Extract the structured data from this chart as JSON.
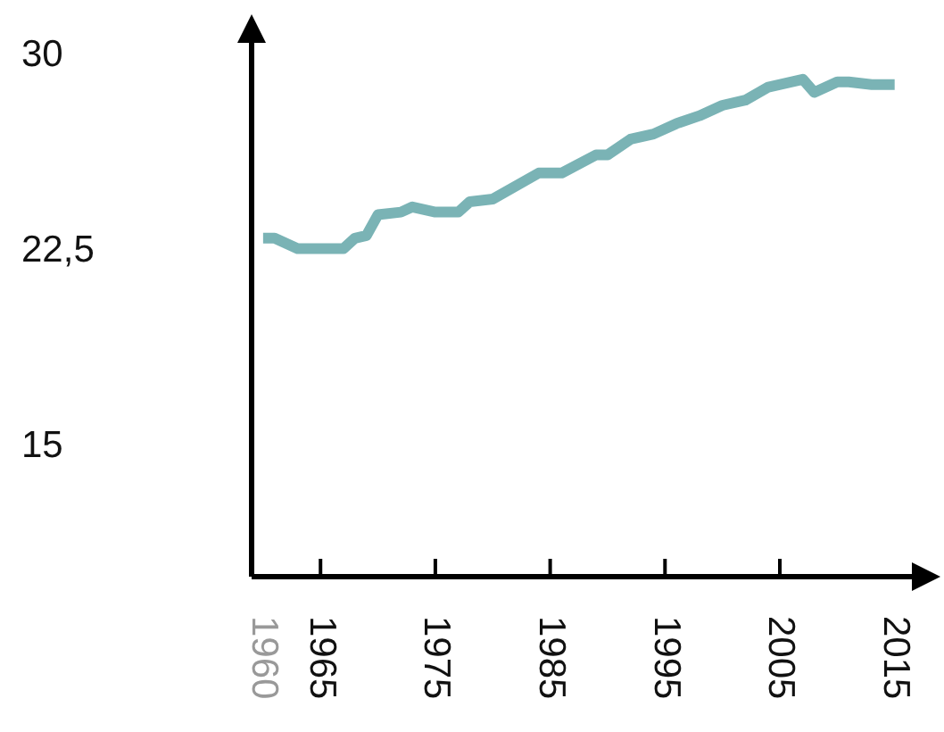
{
  "chart_data": {
    "type": "line",
    "x": [
      1960,
      1961,
      1963,
      1967,
      1968,
      1969,
      1970,
      1972,
      1973,
      1975,
      1977,
      1978,
      1980,
      1984,
      1986,
      1989,
      1990,
      1992,
      1994,
      1996,
      1998,
      2000,
      2002,
      2004,
      2007,
      2008,
      2010,
      2011,
      2013,
      2015
    ],
    "series": [
      {
        "color": "#7ab3b5",
        "values": [
          23.0,
          23.0,
          22.6,
          22.6,
          23.0,
          23.1,
          23.9,
          24.0,
          24.2,
          24.0,
          24.0,
          24.4,
          24.5,
          25.5,
          25.5,
          26.2,
          26.2,
          26.8,
          27.0,
          27.4,
          27.7,
          28.1,
          28.3,
          28.8,
          29.1,
          28.6,
          29.0,
          29.0,
          28.9,
          28.9
        ]
      }
    ],
    "xlim": [
      1959,
      2016.5
    ],
    "xticks": [
      1960,
      1965,
      1975,
      1985,
      1995,
      2005,
      2015
    ],
    "ylim": [
      10,
      30.5
    ],
    "yticks": [
      15,
      {
        "value": 22.5,
        "label": "22,5"
      },
      30
    ],
    "grid": false,
    "legend": false,
    "marker": "none",
    "line_style": "solid"
  }
}
